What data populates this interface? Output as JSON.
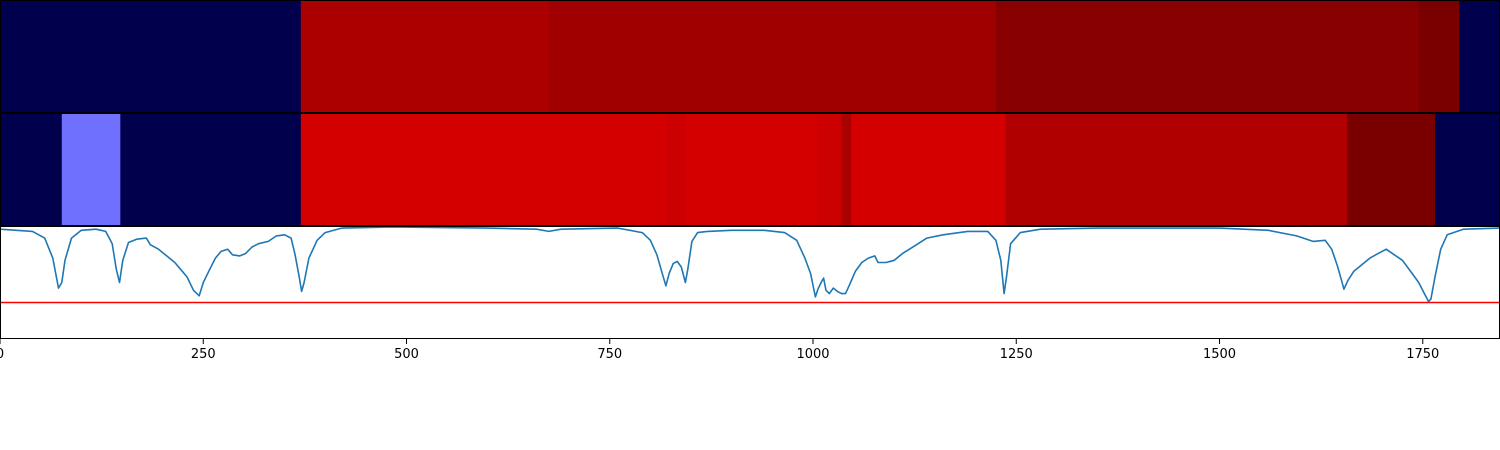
{
  "chart_data": [
    {
      "type": "heatmap",
      "xlim": [
        0,
        1845
      ],
      "segments": [
        {
          "start": 0,
          "end": 370,
          "color": "#00004c"
        },
        {
          "start": 370,
          "end": 675,
          "color": "#aa0000"
        },
        {
          "start": 675,
          "end": 1225,
          "color": "#a00000"
        },
        {
          "start": 1225,
          "end": 1745,
          "color": "#880000"
        },
        {
          "start": 1745,
          "end": 1795,
          "color": "#7a0000"
        },
        {
          "start": 1795,
          "end": 1845,
          "color": "#00004c"
        }
      ]
    },
    {
      "type": "heatmap",
      "xlim": [
        0,
        1845
      ],
      "segments": [
        {
          "start": 0,
          "end": 76,
          "color": "#00004c"
        },
        {
          "start": 76,
          "end": 148,
          "color": "#7070ff"
        },
        {
          "start": 148,
          "end": 370,
          "color": "#00004c"
        },
        {
          "start": 370,
          "end": 820,
          "color": "#d40000"
        },
        {
          "start": 820,
          "end": 843,
          "color": "#cc0000"
        },
        {
          "start": 843,
          "end": 1005,
          "color": "#d40000"
        },
        {
          "start": 1005,
          "end": 1035,
          "color": "#cc0000"
        },
        {
          "start": 1035,
          "end": 1047,
          "color": "#aa0000"
        },
        {
          "start": 1047,
          "end": 1237,
          "color": "#d40000"
        },
        {
          "start": 1237,
          "end": 1657,
          "color": "#b00000"
        },
        {
          "start": 1657,
          "end": 1765,
          "color": "#7a0000"
        },
        {
          "start": 1765,
          "end": 1845,
          "color": "#00004c"
        }
      ]
    },
    {
      "type": "line",
      "xlim": [
        0,
        1845
      ],
      "ylim": [
        0,
        1
      ],
      "series": [
        {
          "color": "#1f77b4",
          "points": [
            [
              0,
              0.98
            ],
            [
              20,
              0.97
            ],
            [
              40,
              0.96
            ],
            [
              55,
              0.9
            ],
            [
              65,
              0.72
            ],
            [
              72,
              0.45
            ],
            [
              76,
              0.5
            ],
            [
              80,
              0.7
            ],
            [
              88,
              0.9
            ],
            [
              100,
              0.97
            ],
            [
              118,
              0.98
            ],
            [
              130,
              0.96
            ],
            [
              138,
              0.85
            ],
            [
              143,
              0.62
            ],
            [
              147,
              0.5
            ],
            [
              151,
              0.7
            ],
            [
              158,
              0.86
            ],
            [
              168,
              0.89
            ],
            [
              180,
              0.9
            ],
            [
              185,
              0.84
            ],
            [
              195,
              0.8
            ],
            [
              205,
              0.74
            ],
            [
              215,
              0.68
            ],
            [
              222,
              0.62
            ],
            [
              230,
              0.55
            ],
            [
              238,
              0.43
            ],
            [
              245,
              0.38
            ],
            [
              250,
              0.5
            ],
            [
              258,
              0.62
            ],
            [
              265,
              0.72
            ],
            [
              272,
              0.78
            ],
            [
              280,
              0.8
            ],
            [
              286,
              0.75
            ],
            [
              295,
              0.74
            ],
            [
              302,
              0.76
            ],
            [
              310,
              0.82
            ],
            [
              318,
              0.85
            ],
            [
              330,
              0.87
            ],
            [
              340,
              0.92
            ],
            [
              350,
              0.93
            ],
            [
              358,
              0.9
            ],
            [
              363,
              0.75
            ],
            [
              368,
              0.55
            ],
            [
              371,
              0.42
            ],
            [
              374,
              0.5
            ],
            [
              380,
              0.72
            ],
            [
              390,
              0.88
            ],
            [
              400,
              0.95
            ],
            [
              420,
              0.99
            ],
            [
              480,
              1.0
            ],
            [
              600,
              0.99
            ],
            [
              660,
              0.98
            ],
            [
              675,
              0.96
            ],
            [
              690,
              0.98
            ],
            [
              760,
              0.99
            ],
            [
              790,
              0.95
            ],
            [
              800,
              0.88
            ],
            [
              808,
              0.75
            ],
            [
              815,
              0.57
            ],
            [
              819,
              0.47
            ],
            [
              823,
              0.58
            ],
            [
              828,
              0.67
            ],
            [
              833,
              0.69
            ],
            [
              838,
              0.64
            ],
            [
              843,
              0.5
            ],
            [
              846,
              0.62
            ],
            [
              851,
              0.87
            ],
            [
              858,
              0.95
            ],
            [
              870,
              0.96
            ],
            [
              900,
              0.97
            ],
            [
              940,
              0.97
            ],
            [
              965,
              0.95
            ],
            [
              980,
              0.88
            ],
            [
              990,
              0.72
            ],
            [
              997,
              0.58
            ],
            [
              1003,
              0.37
            ],
            [
              1006,
              0.44
            ],
            [
              1010,
              0.5
            ],
            [
              1013,
              0.54
            ],
            [
              1016,
              0.43
            ],
            [
              1020,
              0.4
            ],
            [
              1025,
              0.45
            ],
            [
              1030,
              0.42
            ],
            [
              1035,
              0.4
            ],
            [
              1040,
              0.4
            ],
            [
              1045,
              0.48
            ],
            [
              1052,
              0.6
            ],
            [
              1060,
              0.68
            ],
            [
              1068,
              0.72
            ],
            [
              1076,
              0.74
            ],
            [
              1080,
              0.68
            ],
            [
              1090,
              0.68
            ],
            [
              1100,
              0.7
            ],
            [
              1110,
              0.76
            ],
            [
              1125,
              0.83
            ],
            [
              1140,
              0.9
            ],
            [
              1160,
              0.93
            ],
            [
              1190,
              0.96
            ],
            [
              1215,
              0.96
            ],
            [
              1225,
              0.88
            ],
            [
              1231,
              0.7
            ],
            [
              1235,
              0.4
            ],
            [
              1238,
              0.55
            ],
            [
              1243,
              0.85
            ],
            [
              1255,
              0.95
            ],
            [
              1280,
              0.98
            ],
            [
              1350,
              0.99
            ],
            [
              1500,
              0.99
            ],
            [
              1560,
              0.97
            ],
            [
              1595,
              0.92
            ],
            [
              1615,
              0.87
            ],
            [
              1630,
              0.88
            ],
            [
              1638,
              0.8
            ],
            [
              1645,
              0.65
            ],
            [
              1650,
              0.52
            ],
            [
              1653,
              0.44
            ],
            [
              1658,
              0.52
            ],
            [
              1665,
              0.6
            ],
            [
              1675,
              0.66
            ],
            [
              1685,
              0.72
            ],
            [
              1695,
              0.76
            ],
            [
              1705,
              0.8
            ],
            [
              1715,
              0.75
            ],
            [
              1725,
              0.7
            ],
            [
              1735,
              0.6
            ],
            [
              1745,
              0.5
            ],
            [
              1752,
              0.4
            ],
            [
              1757,
              0.33
            ],
            [
              1760,
              0.35
            ],
            [
              1765,
              0.55
            ],
            [
              1772,
              0.8
            ],
            [
              1780,
              0.93
            ],
            [
              1800,
              0.98
            ],
            [
              1845,
              0.99
            ]
          ]
        }
      ],
      "threshold": {
        "y": 0.32,
        "color": "#ff0000"
      },
      "xticks": [
        0,
        250,
        500,
        750,
        1000,
        1250,
        1500,
        1750
      ],
      "xticklabels": [
        "0",
        "250",
        "500",
        "750",
        "1000",
        "1250",
        "1500",
        "1750"
      ]
    }
  ]
}
